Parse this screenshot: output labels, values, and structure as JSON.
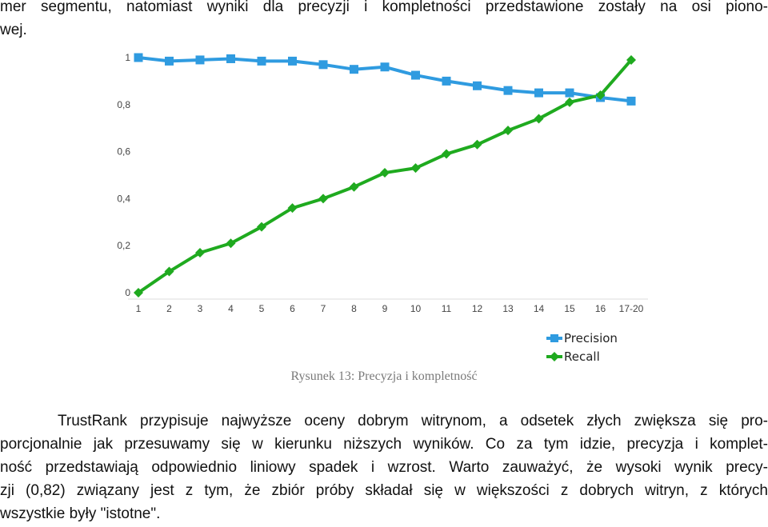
{
  "text": {
    "top_line1": "mer segmentu, natomiast wyniki dla precyzji i kompletności przedstawione zostały na osi piono-",
    "top_line2": "wej.",
    "caption": "Rysunek 13: Precyzja i kompletność",
    "para": [
      "TrustRank przypisuje najwyższe oceny dobrym witrynom, a odsetek złych zwiększa się pro-",
      "porcjonalnie jak przesuwamy się w kierunku niższych wyników. Co za tym idzie, precyzja i komplet-",
      "ność przedstawiają odpowiednio liniowy spadek i wzrost. Warto zauważyć, że wysoki wynik precy-",
      "zji (0,82) związany jest z tym, że zbiór próby składał się w większości z dobrych witryn, z których",
      "wszystkie były \"istotne\"."
    ]
  },
  "chart_data": {
    "type": "line",
    "categories": [
      "1",
      "2",
      "3",
      "4",
      "5",
      "6",
      "7",
      "8",
      "9",
      "10",
      "11",
      "12",
      "13",
      "14",
      "15",
      "16",
      "17-20"
    ],
    "ylim": [
      0,
      1
    ],
    "yticks": [
      "0",
      "0,2",
      "0,4",
      "0,6",
      "0,8",
      "1"
    ],
    "ytick_values": [
      0,
      0.2,
      0.4,
      0.6,
      0.8,
      1
    ],
    "grid": false,
    "legend_placement": "below-right",
    "series": [
      {
        "name": "Precision",
        "color": "#2f9be0",
        "marker": "square",
        "values": [
          1.0,
          0.985,
          0.99,
          0.995,
          0.985,
          0.985,
          0.97,
          0.95,
          0.96,
          0.925,
          0.9,
          0.88,
          0.86,
          0.85,
          0.85,
          0.83,
          0.815
        ]
      },
      {
        "name": "Recall",
        "color": "#1faa1f",
        "marker": "diamond",
        "values": [
          0.0,
          0.09,
          0.17,
          0.21,
          0.28,
          0.36,
          0.4,
          0.45,
          0.51,
          0.53,
          0.59,
          0.63,
          0.69,
          0.74,
          0.81,
          0.84,
          0.99
        ]
      }
    ]
  }
}
